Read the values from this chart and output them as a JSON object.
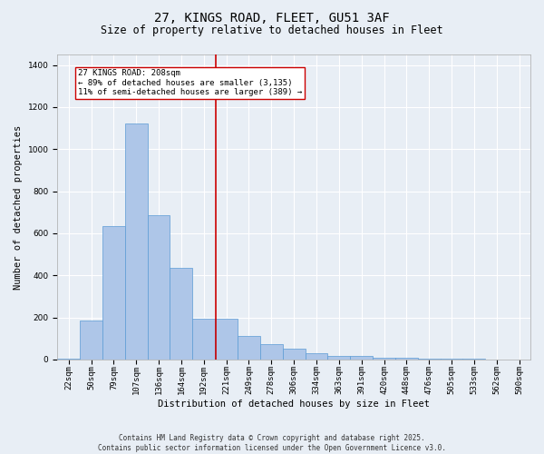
{
  "title_line1": "27, KINGS ROAD, FLEET, GU51 3AF",
  "title_line2": "Size of property relative to detached houses in Fleet",
  "xlabel": "Distribution of detached houses by size in Fleet",
  "ylabel": "Number of detached properties",
  "bin_labels": [
    "22sqm",
    "50sqm",
    "79sqm",
    "107sqm",
    "136sqm",
    "164sqm",
    "192sqm",
    "221sqm",
    "249sqm",
    "278sqm",
    "306sqm",
    "334sqm",
    "363sqm",
    "391sqm",
    "420sqm",
    "448sqm",
    "476sqm",
    "505sqm",
    "533sqm",
    "562sqm",
    "590sqm"
  ],
  "bar_heights": [
    5,
    185,
    635,
    1120,
    685,
    435,
    195,
    195,
    110,
    75,
    50,
    30,
    15,
    15,
    10,
    8,
    5,
    4,
    2,
    1,
    1
  ],
  "bar_color": "#aec6e8",
  "bar_edge_color": "#5b9bd5",
  "bar_width": 1.0,
  "vline_color": "#cc0000",
  "annotation_title": "27 KINGS ROAD: 208sqm",
  "annotation_line2": "← 89% of detached houses are smaller (3,135)",
  "annotation_line3": "11% of semi-detached houses are larger (389) →",
  "ylim": [
    0,
    1450
  ],
  "yticks": [
    0,
    200,
    400,
    600,
    800,
    1000,
    1200,
    1400
  ],
  "background_color": "#e8eef5",
  "plot_bg_color": "#e8eef5",
  "grid_color": "#ffffff",
  "footer_line1": "Contains HM Land Registry data © Crown copyright and database right 2025.",
  "footer_line2": "Contains public sector information licensed under the Open Government Licence v3.0.",
  "title_fontsize": 10,
  "subtitle_fontsize": 8.5,
  "annotation_fontsize": 6.5,
  "axis_label_fontsize": 7.5,
  "tick_fontsize": 6.5,
  "footer_fontsize": 5.5
}
